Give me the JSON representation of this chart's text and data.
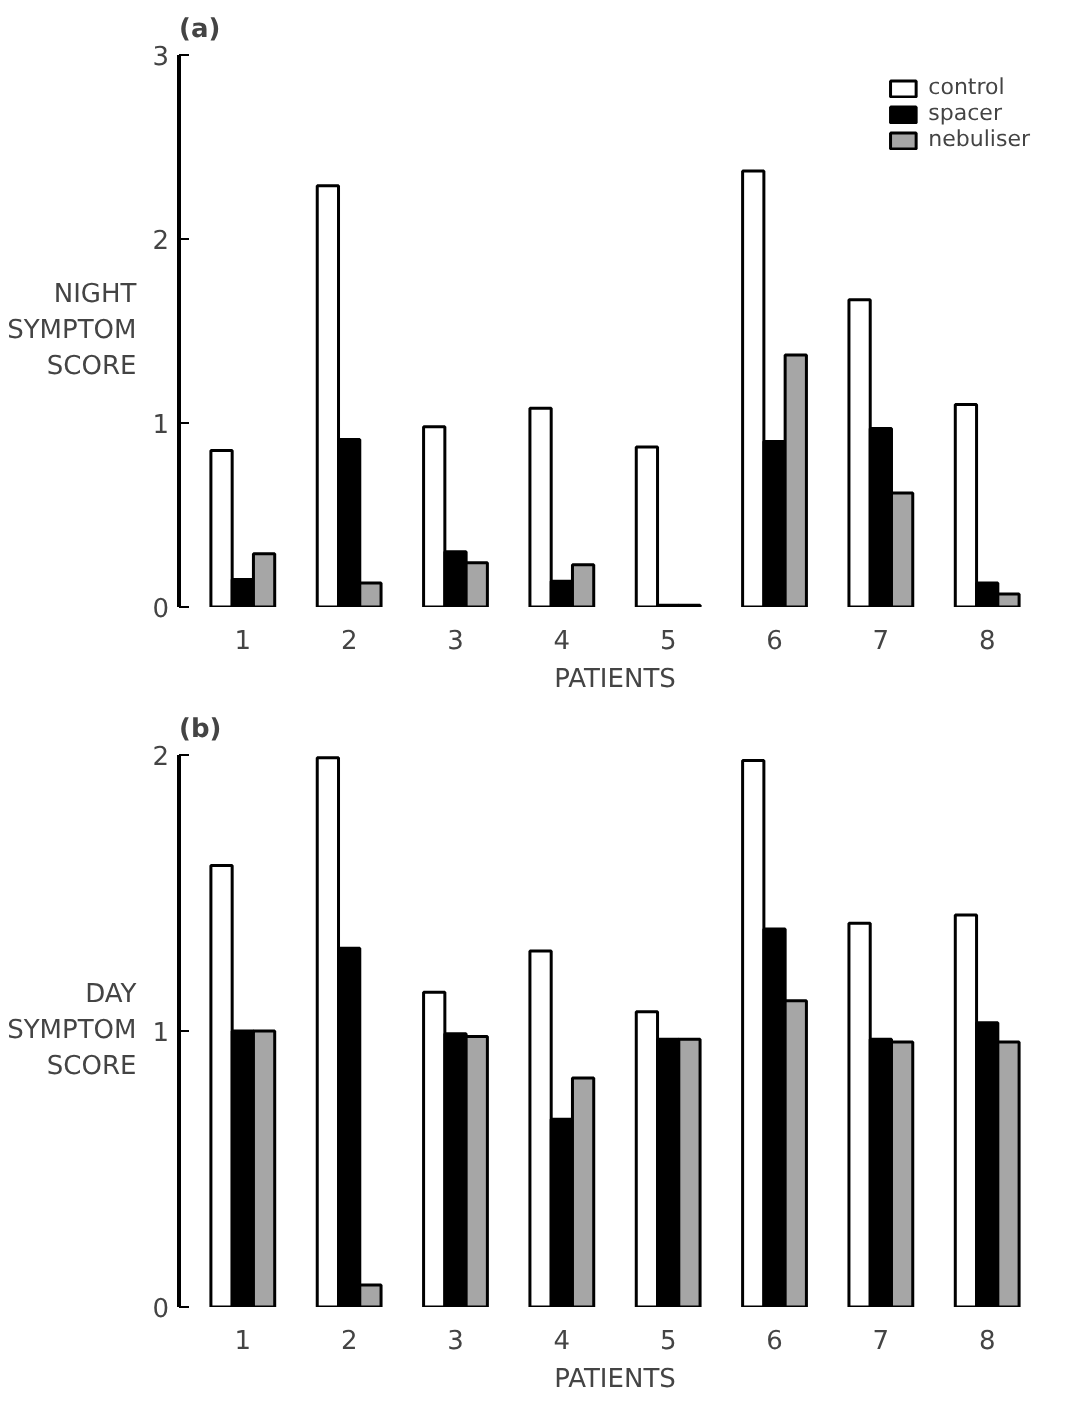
{
  "chart_data": [
    {
      "type": "bar",
      "title": "(a)",
      "xlabel": "PATIENTS",
      "ylabel": "NIGHT\nSYMPTOM\nSCORE",
      "categories": [
        "1",
        "2",
        "3",
        "4",
        "5",
        "6",
        "7",
        "8"
      ],
      "ylim": [
        0,
        3
      ],
      "yticks": [
        0,
        1,
        2,
        3
      ],
      "grid": false,
      "legend": "top right",
      "series": [
        {
          "name": "control",
          "color": "#ffffff",
          "values": [
            0.85,
            2.29,
            0.98,
            1.08,
            0.87,
            2.37,
            1.67,
            1.1
          ]
        },
        {
          "name": "spacer",
          "color": "#000000",
          "values": [
            0.15,
            0.91,
            0.3,
            0.14,
            0.01,
            0.9,
            0.97,
            0.13
          ]
        },
        {
          "name": "nebuliser",
          "color": "#a6a6a6",
          "values": [
            0.29,
            0.13,
            0.24,
            0.23,
            0.01,
            1.37,
            0.62,
            0.07
          ]
        }
      ]
    },
    {
      "type": "bar",
      "title": "(b)",
      "xlabel": "PATIENTS",
      "ylabel": "DAY\nSYMPTOM\nSCORE",
      "categories": [
        "1",
        "2",
        "3",
        "4",
        "5",
        "6",
        "7",
        "8"
      ],
      "ylim": [
        0,
        2
      ],
      "yticks": [
        0,
        1,
        2
      ],
      "grid": false,
      "series": [
        {
          "color": "#ffffff",
          "values": [
            1.6,
            1.99,
            1.14,
            1.29,
            1.07,
            1.98,
            1.39,
            1.42
          ]
        },
        {
          "color": "#000000",
          "values": [
            1.0,
            1.3,
            0.99,
            0.68,
            0.97,
            1.37,
            0.97,
            1.03
          ]
        },
        {
          "color": "#a6a6a6",
          "values": [
            1.0,
            0.08,
            0.98,
            0.83,
            0.97,
            1.11,
            0.96,
            0.96
          ]
        }
      ]
    }
  ]
}
